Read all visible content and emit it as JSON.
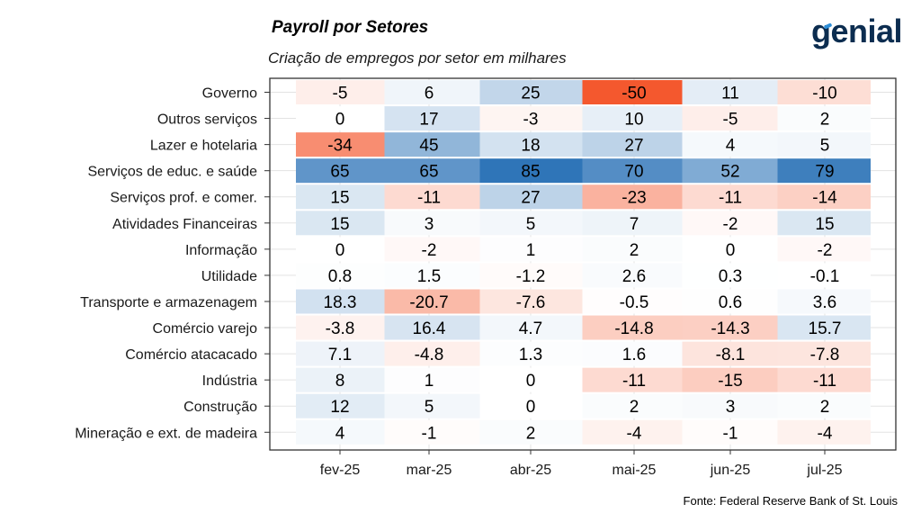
{
  "header": {
    "title": "Payroll por Setores",
    "subtitle": "Criação de empregos por setor em milhares",
    "logo": "genial"
  },
  "footer": {
    "source": "Fonte: Federal Reserve Bank of St. Louis"
  },
  "colors": {
    "negative_max": "#f4582e",
    "positive_max": "#2f75b8",
    "neutral": "#ffffff"
  },
  "chart_data": {
    "type": "heatmap",
    "title": "Payroll por Setores",
    "subtitle": "Criação de empregos por setor em milhares",
    "columns": [
      "fev-25",
      "mar-25",
      "abr-25",
      "mai-25",
      "jun-25",
      "jul-25"
    ],
    "rows": [
      "Governo",
      "Outros serviços",
      "Lazer e hotelaria",
      "Serviços de educ. e saúde",
      "Serviços prof. e comer.",
      "Atividades Financeiras",
      "Informação",
      "Utilidade",
      "Transporte e armazenagem",
      "Comércio varejo",
      "Comércio atacacado",
      "Indústria",
      "Construção",
      "Mineração e ext. de madeira"
    ],
    "values": [
      [
        -5,
        6,
        25,
        -50,
        11,
        -10
      ],
      [
        0,
        17,
        -3,
        10,
        -5,
        2
      ],
      [
        -34,
        45,
        18,
        27,
        4,
        5
      ],
      [
        65,
        65,
        85,
        70,
        52,
        79
      ],
      [
        15,
        -11,
        27,
        -23,
        -11,
        -14
      ],
      [
        15,
        3,
        5,
        7,
        -2,
        15
      ],
      [
        0,
        -2,
        1,
        2,
        0,
        -2
      ],
      [
        0.8,
        1.5,
        -1.2,
        2.6,
        0.3,
        -0.1
      ],
      [
        18.3,
        -20.7,
        -7.6,
        -0.5,
        0.6,
        3.6
      ],
      [
        -3.8,
        16.4,
        4.7,
        -14.8,
        -14.3,
        15.7
      ],
      [
        7.1,
        -4.8,
        1.3,
        1.6,
        -8.1,
        -7.8
      ],
      [
        8,
        1,
        0,
        -11,
        -15,
        -11
      ],
      [
        12,
        5,
        0,
        2,
        3,
        2
      ],
      [
        4,
        -1,
        2,
        -4,
        -1,
        -4
      ]
    ],
    "labels": [
      [
        "-5",
        "6",
        "25",
        "-50",
        "11",
        "-10"
      ],
      [
        "0",
        "17",
        "-3",
        "10",
        "-5",
        "2"
      ],
      [
        "-34",
        "45",
        "18",
        "27",
        "4",
        "5"
      ],
      [
        "65",
        "65",
        "85",
        "70",
        "52",
        "79"
      ],
      [
        "15",
        "-11",
        "27",
        "-23",
        "-11",
        "-14"
      ],
      [
        "15",
        "3",
        "5",
        "7",
        "-2",
        "15"
      ],
      [
        "0",
        "-2",
        "1",
        "2",
        "0",
        "-2"
      ],
      [
        "0.8",
        "1.5",
        "-1.2",
        "2.6",
        "0.3",
        "-0.1"
      ],
      [
        "18.3",
        "-20.7",
        "-7.6",
        "-0.5",
        "0.6",
        "3.6"
      ],
      [
        "-3.8",
        "16.4",
        "4.7",
        "-14.8",
        "-14.3",
        "15.7"
      ],
      [
        "7.1",
        "-4.8",
        "1.3",
        "1.6",
        "-8.1",
        "-7.8"
      ],
      [
        "8",
        "1",
        "0",
        "-11",
        "-15",
        "-11"
      ],
      [
        "12",
        "5",
        "0",
        "2",
        "3",
        "2"
      ],
      [
        "4",
        "-1",
        "2",
        "-4",
        "-1",
        "-4"
      ]
    ],
    "color_scale": {
      "min": -50,
      "max": 85,
      "midpoint": 0
    },
    "grid": true,
    "legend": "none"
  }
}
